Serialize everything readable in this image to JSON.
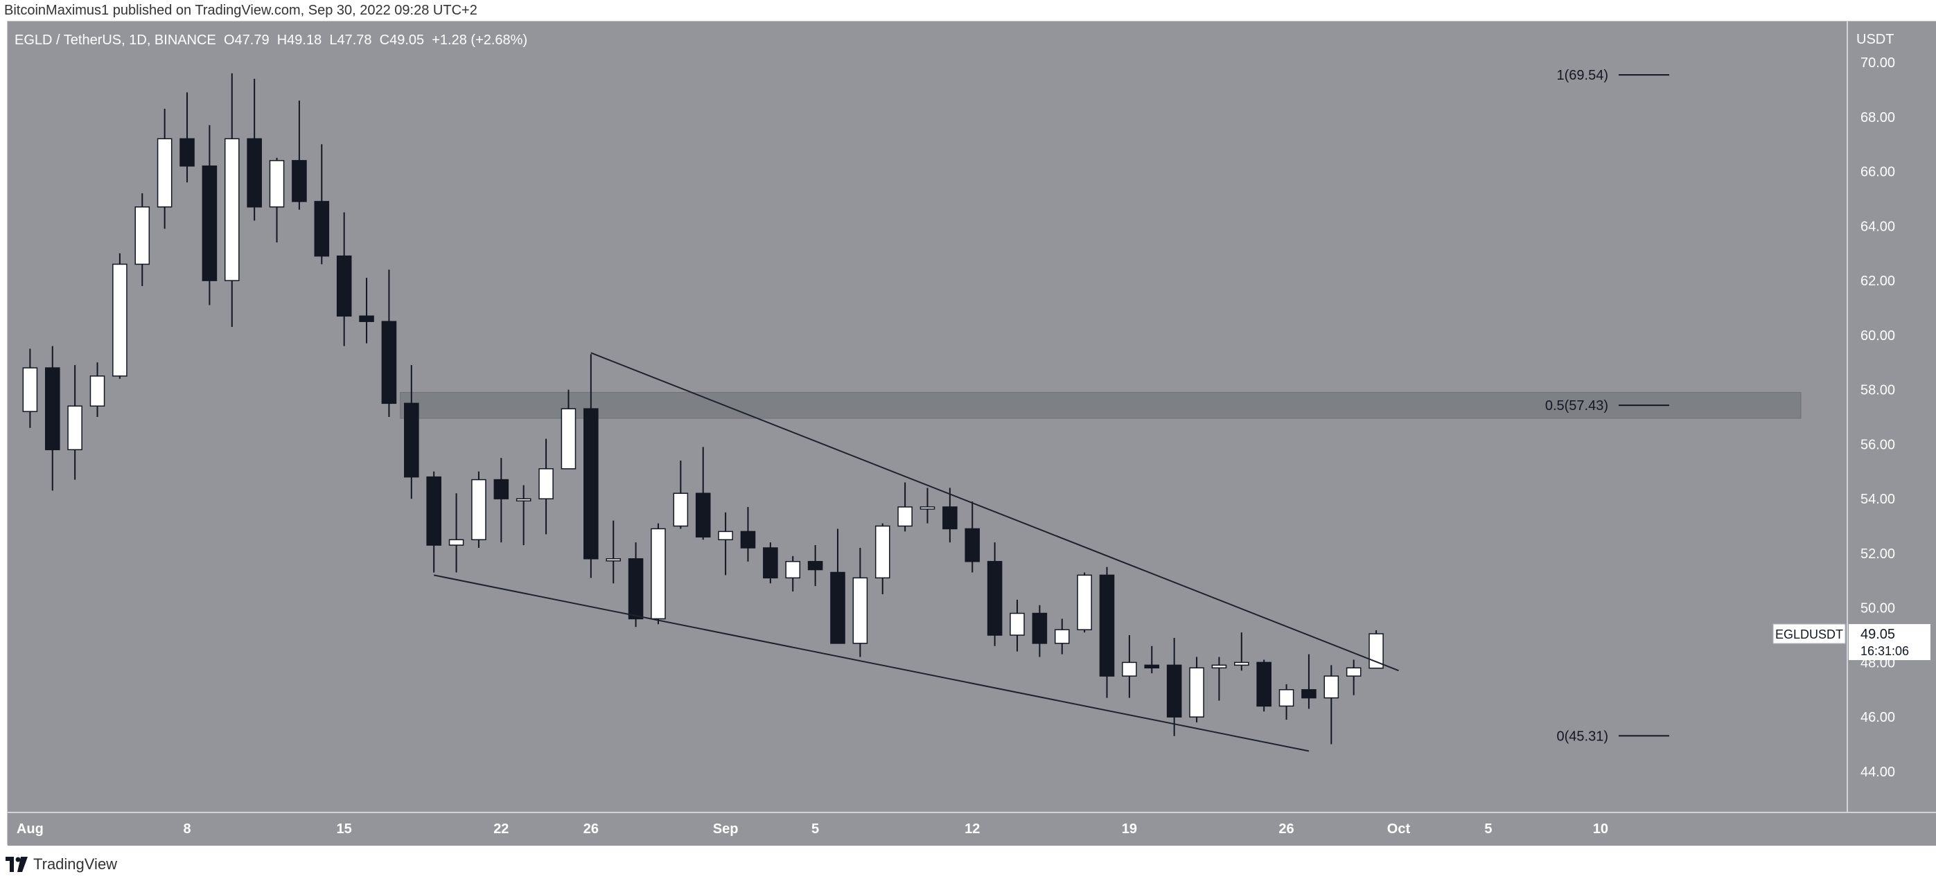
{
  "header": {
    "publish_line": "BitcoinMaximus1 published on TradingView.com, Sep 30, 2022 09:28 UTC+2"
  },
  "footer": {
    "brand": "TradingView"
  },
  "colors": {
    "background": "#93959b",
    "bull_body": "#ffffff",
    "bear_body": "#131722",
    "wick": "#131722",
    "zone": "#7b7d83",
    "trendline": "#1e222d"
  },
  "chart_data": {
    "type": "candlestick",
    "symbol_title": "EGLD / TetherUS, 1D, BINANCE",
    "ohlc_readout": {
      "O": "47.79",
      "H": "49.18",
      "L": "47.78",
      "C": "49.05",
      "change": "+1.28 (+2.68%)"
    },
    "price_axis_label": "USDT",
    "y_ticks": [
      "70.00",
      "68.00",
      "66.00",
      "64.00",
      "62.00",
      "60.00",
      "58.00",
      "56.00",
      "54.00",
      "52.00",
      "50.00",
      "48.00",
      "46.00",
      "44.00"
    ],
    "ylim": [
      42.5,
      71.5
    ],
    "x_ticks": [
      {
        "label": "Aug",
        "date": "2022-08-01"
      },
      {
        "label": "8",
        "date": "2022-08-08"
      },
      {
        "label": "15",
        "date": "2022-08-15"
      },
      {
        "label": "22",
        "date": "2022-08-22"
      },
      {
        "label": "26",
        "date": "2022-08-26"
      },
      {
        "label": "Sep",
        "date": "2022-09-01"
      },
      {
        "label": "5",
        "date": "2022-09-05"
      },
      {
        "label": "12",
        "date": "2022-09-12"
      },
      {
        "label": "19",
        "date": "2022-09-19"
      },
      {
        "label": "26",
        "date": "2022-09-26"
      },
      {
        "label": "Oct",
        "date": "2022-10-01"
      },
      {
        "label": "5",
        "date": "2022-10-05"
      },
      {
        "label": "10",
        "date": "2022-10-10"
      }
    ],
    "xlim": [
      "2022-07-31",
      "2022-10-21"
    ],
    "candles": [
      {
        "date": "2022-08-01",
        "o": 57.2,
        "h": 59.5,
        "l": 56.6,
        "c": 58.8
      },
      {
        "date": "2022-08-02",
        "o": 58.8,
        "h": 59.6,
        "l": 54.3,
        "c": 55.8
      },
      {
        "date": "2022-08-03",
        "o": 55.8,
        "h": 58.9,
        "l": 54.7,
        "c": 57.4
      },
      {
        "date": "2022-08-04",
        "o": 57.4,
        "h": 59.0,
        "l": 57.0,
        "c": 58.5
      },
      {
        "date": "2022-08-05",
        "o": 58.5,
        "h": 63.0,
        "l": 58.4,
        "c": 62.6
      },
      {
        "date": "2022-08-06",
        "o": 62.6,
        "h": 65.2,
        "l": 61.8,
        "c": 64.7
      },
      {
        "date": "2022-08-07",
        "o": 64.7,
        "h": 68.3,
        "l": 63.9,
        "c": 67.2
      },
      {
        "date": "2022-08-08",
        "o": 67.2,
        "h": 68.9,
        "l": 65.6,
        "c": 66.2
      },
      {
        "date": "2022-08-09",
        "o": 66.2,
        "h": 67.7,
        "l": 61.1,
        "c": 62.0
      },
      {
        "date": "2022-08-10",
        "o": 62.0,
        "h": 69.6,
        "l": 60.3,
        "c": 67.2
      },
      {
        "date": "2022-08-11",
        "o": 67.2,
        "h": 69.4,
        "l": 64.2,
        "c": 64.7
      },
      {
        "date": "2022-08-12",
        "o": 64.7,
        "h": 66.5,
        "l": 63.4,
        "c": 66.4
      },
      {
        "date": "2022-08-13",
        "o": 66.4,
        "h": 68.6,
        "l": 64.6,
        "c": 64.9
      },
      {
        "date": "2022-08-14",
        "o": 64.9,
        "h": 67.0,
        "l": 62.6,
        "c": 62.9
      },
      {
        "date": "2022-08-15",
        "o": 62.9,
        "h": 64.5,
        "l": 59.6,
        "c": 60.7
      },
      {
        "date": "2022-08-16",
        "o": 60.7,
        "h": 62.1,
        "l": 59.7,
        "c": 60.5
      },
      {
        "date": "2022-08-17",
        "o": 60.5,
        "h": 62.4,
        "l": 57.0,
        "c": 57.5
      },
      {
        "date": "2022-08-18",
        "o": 57.5,
        "h": 58.9,
        "l": 54.0,
        "c": 54.8
      },
      {
        "date": "2022-08-19",
        "o": 54.8,
        "h": 55.0,
        "l": 51.3,
        "c": 52.3
      },
      {
        "date": "2022-08-20",
        "o": 52.3,
        "h": 54.2,
        "l": 51.3,
        "c": 52.5
      },
      {
        "date": "2022-08-21",
        "o": 52.5,
        "h": 55.0,
        "l": 52.2,
        "c": 54.7
      },
      {
        "date": "2022-08-22",
        "o": 54.7,
        "h": 55.5,
        "l": 52.4,
        "c": 54.0
      },
      {
        "date": "2022-08-23",
        "o": 54.0,
        "h": 54.5,
        "l": 52.3,
        "c": 54.0
      },
      {
        "date": "2022-08-24",
        "o": 54.0,
        "h": 56.2,
        "l": 52.7,
        "c": 55.1
      },
      {
        "date": "2022-08-25",
        "o": 55.1,
        "h": 58.0,
        "l": 55.1,
        "c": 57.3
      },
      {
        "date": "2022-08-26",
        "o": 57.3,
        "h": 59.3,
        "l": 51.1,
        "c": 51.8
      },
      {
        "date": "2022-08-27",
        "o": 51.8,
        "h": 53.2,
        "l": 50.9,
        "c": 51.8
      },
      {
        "date": "2022-08-28",
        "o": 51.8,
        "h": 52.4,
        "l": 49.3,
        "c": 49.6
      },
      {
        "date": "2022-08-29",
        "o": 49.6,
        "h": 53.1,
        "l": 49.4,
        "c": 52.9
      },
      {
        "date": "2022-08-30",
        "o": 53.0,
        "h": 55.4,
        "l": 52.9,
        "c": 54.2
      },
      {
        "date": "2022-08-31",
        "o": 54.2,
        "h": 55.9,
        "l": 52.5,
        "c": 52.6
      },
      {
        "date": "2022-09-01",
        "o": 52.5,
        "h": 53.5,
        "l": 51.2,
        "c": 52.8
      },
      {
        "date": "2022-09-02",
        "o": 52.8,
        "h": 53.7,
        "l": 51.7,
        "c": 52.2
      },
      {
        "date": "2022-09-03",
        "o": 52.2,
        "h": 52.4,
        "l": 50.9,
        "c": 51.1
      },
      {
        "date": "2022-09-04",
        "o": 51.1,
        "h": 51.9,
        "l": 50.6,
        "c": 51.7
      },
      {
        "date": "2022-09-05",
        "o": 51.7,
        "h": 52.3,
        "l": 50.8,
        "c": 51.4
      },
      {
        "date": "2022-09-06",
        "o": 51.3,
        "h": 52.9,
        "l": 48.7,
        "c": 48.7
      },
      {
        "date": "2022-09-07",
        "o": 48.7,
        "h": 52.2,
        "l": 48.2,
        "c": 51.1
      },
      {
        "date": "2022-09-08",
        "o": 51.1,
        "h": 53.1,
        "l": 50.5,
        "c": 53.0
      },
      {
        "date": "2022-09-09",
        "o": 53.0,
        "h": 54.6,
        "l": 52.8,
        "c": 53.7
      },
      {
        "date": "2022-09-10",
        "o": 53.7,
        "h": 54.4,
        "l": 53.1,
        "c": 53.7
      },
      {
        "date": "2022-09-11",
        "o": 53.7,
        "h": 54.4,
        "l": 52.4,
        "c": 52.9
      },
      {
        "date": "2022-09-12",
        "o": 52.9,
        "h": 53.9,
        "l": 51.3,
        "c": 51.7
      },
      {
        "date": "2022-09-13",
        "o": 51.7,
        "h": 52.4,
        "l": 48.6,
        "c": 49.0
      },
      {
        "date": "2022-09-14",
        "o": 49.0,
        "h": 50.3,
        "l": 48.4,
        "c": 49.8
      },
      {
        "date": "2022-09-15",
        "o": 49.8,
        "h": 50.1,
        "l": 48.2,
        "c": 48.7
      },
      {
        "date": "2022-09-16",
        "o": 48.7,
        "h": 49.6,
        "l": 48.3,
        "c": 49.2
      },
      {
        "date": "2022-09-17",
        "o": 49.2,
        "h": 51.3,
        "l": 49.1,
        "c": 51.2
      },
      {
        "date": "2022-09-18",
        "o": 51.2,
        "h": 51.5,
        "l": 46.7,
        "c": 47.5
      },
      {
        "date": "2022-09-19",
        "o": 47.5,
        "h": 49.0,
        "l": 46.7,
        "c": 48.0
      },
      {
        "date": "2022-09-20",
        "o": 47.9,
        "h": 48.6,
        "l": 47.6,
        "c": 47.8
      },
      {
        "date": "2022-09-21",
        "o": 47.9,
        "h": 48.9,
        "l": 45.3,
        "c": 46.0
      },
      {
        "date": "2022-09-22",
        "o": 46.0,
        "h": 48.2,
        "l": 45.8,
        "c": 47.8
      },
      {
        "date": "2022-09-23",
        "o": 47.8,
        "h": 48.2,
        "l": 46.6,
        "c": 47.9
      },
      {
        "date": "2022-09-24",
        "o": 47.9,
        "h": 49.1,
        "l": 47.7,
        "c": 48.0
      },
      {
        "date": "2022-09-25",
        "o": 48.0,
        "h": 48.1,
        "l": 46.2,
        "c": 46.4
      },
      {
        "date": "2022-09-26",
        "o": 46.4,
        "h": 47.2,
        "l": 45.9,
        "c": 47.0
      },
      {
        "date": "2022-09-27",
        "o": 47.0,
        "h": 48.3,
        "l": 46.3,
        "c": 46.7
      },
      {
        "date": "2022-09-28",
        "o": 46.7,
        "h": 47.9,
        "l": 45.0,
        "c": 47.5
      },
      {
        "date": "2022-09-29",
        "o": 47.5,
        "h": 48.1,
        "l": 46.8,
        "c": 47.8
      },
      {
        "date": "2022-09-30",
        "o": 47.79,
        "h": 49.18,
        "l": 47.78,
        "c": 49.05
      }
    ],
    "fib_levels": [
      {
        "label": "1(69.54)",
        "value": 69.54
      },
      {
        "label": "0.5(57.43)",
        "value": 57.43
      },
      {
        "label": "0(45.31)",
        "value": 45.31
      }
    ],
    "resistance_zone": {
      "from": 56.95,
      "to": 57.9
    },
    "trendlines": [
      {
        "name": "descending resistance",
        "from": {
          "date": "2022-08-26",
          "value": 59.35
        },
        "to": {
          "date": "2022-10-01",
          "value": 47.7
        }
      },
      {
        "name": "descending support",
        "from": {
          "date": "2022-08-19",
          "value": 51.2
        },
        "to": {
          "date": "2022-09-27",
          "value": 44.75
        }
      }
    ],
    "last_price_label": {
      "symbol": "EGLDUSDT",
      "price": "49.05",
      "countdown": "16:31:06"
    },
    "grid": false
  }
}
